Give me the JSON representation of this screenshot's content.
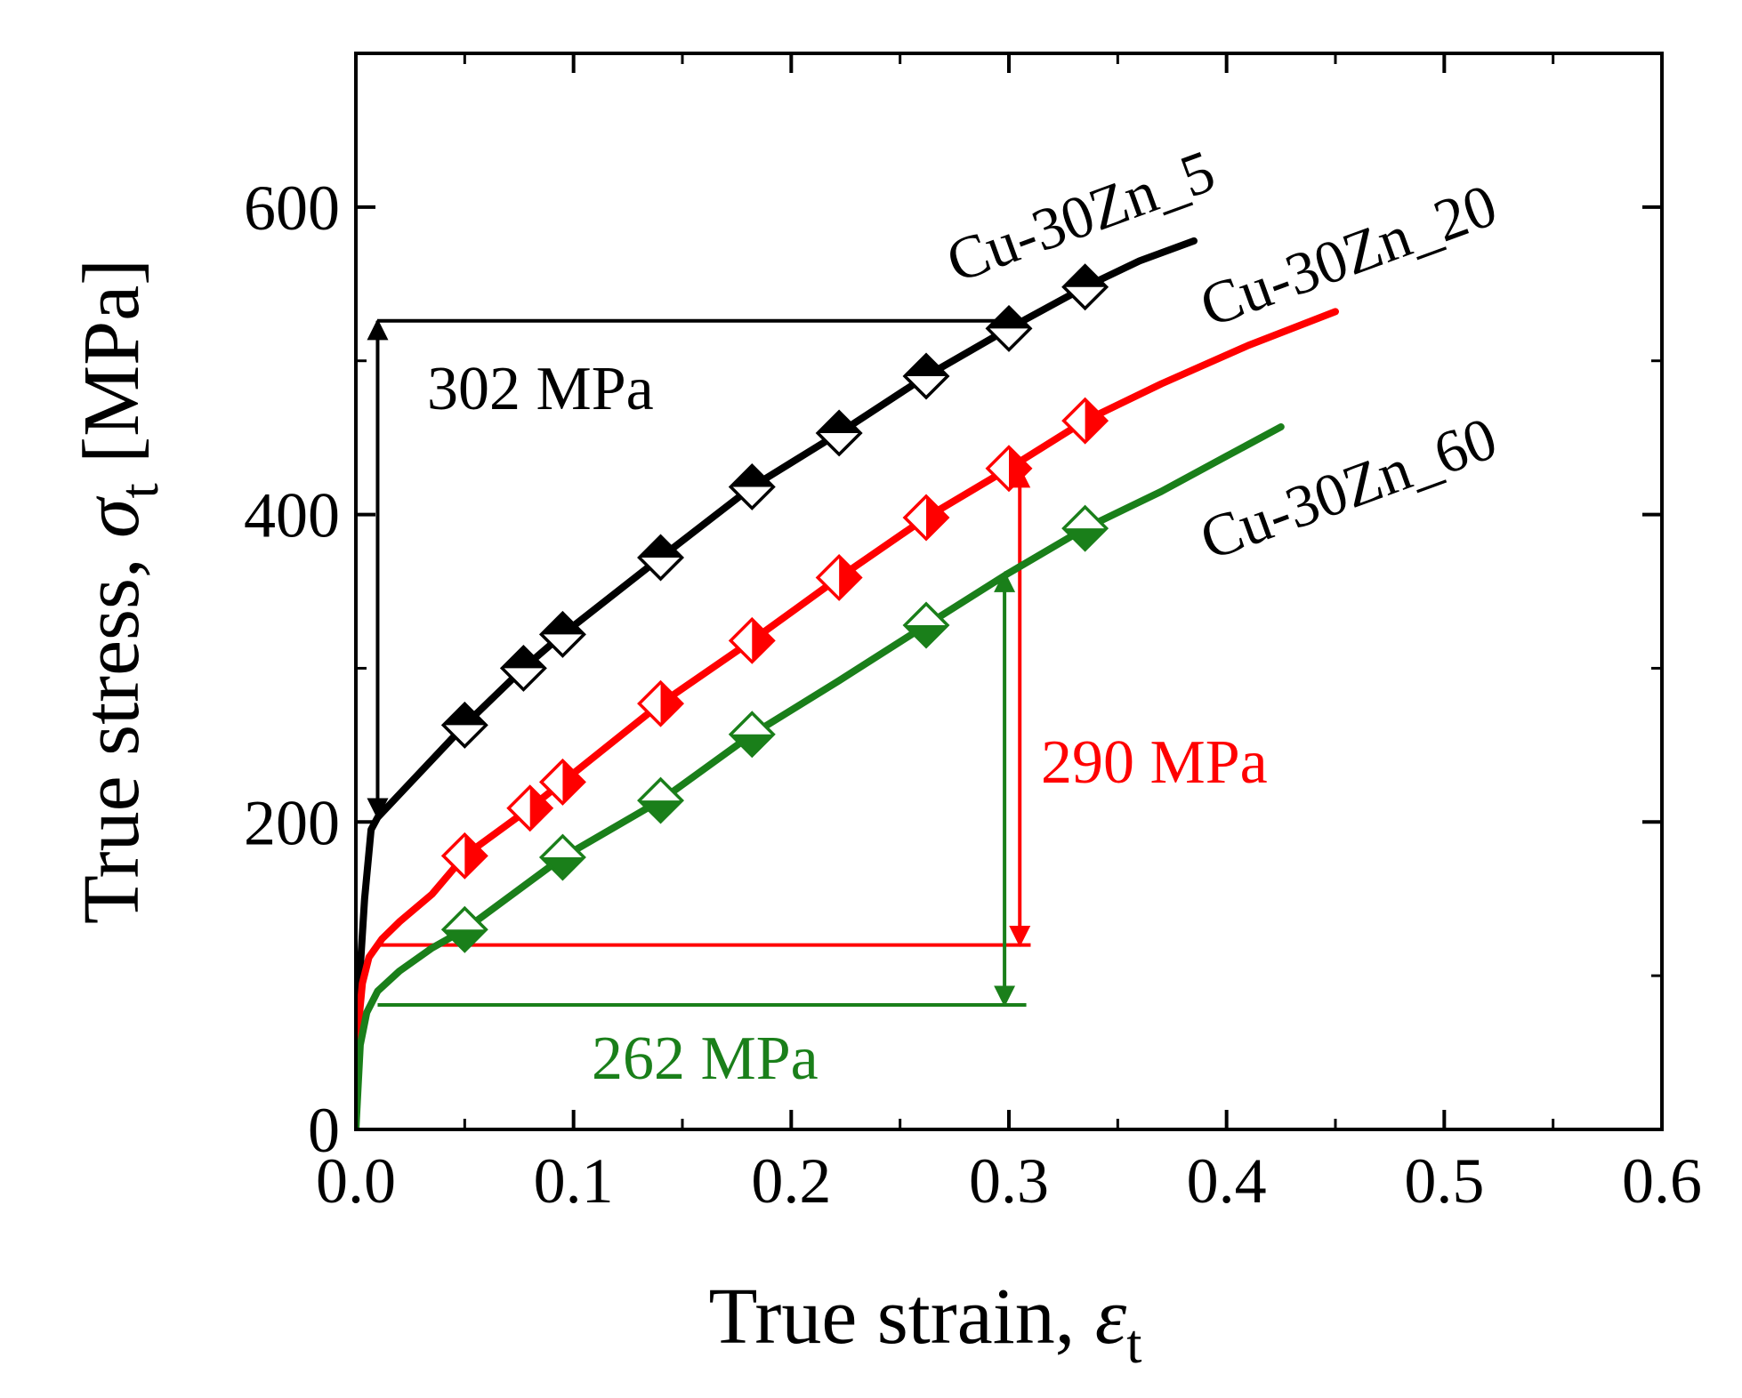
{
  "chart_data": {
    "type": "line",
    "xlabel": {
      "main": "True strain, ",
      "symbol": "ε",
      "sub": "t"
    },
    "ylabel": {
      "main": "True stress, ",
      "symbol": "σ",
      "sub": "t",
      "unit": " [MPa]"
    },
    "xlim": [
      0.0,
      0.6
    ],
    "ylim": [
      0,
      700
    ],
    "xticks": [
      "0.0",
      "0.1",
      "0.2",
      "0.3",
      "0.4",
      "0.5",
      "0.6"
    ],
    "yticks": [
      "0",
      "200",
      "400",
      "600"
    ],
    "grid": false,
    "series": [
      {
        "name": "Cu-30Zn_5",
        "color": "#000000",
        "x": [
          0.0,
          0.004,
          0.007,
          0.01,
          0.05,
          0.077,
          0.095,
          0.14,
          0.182,
          0.222,
          0.262,
          0.3,
          0.335,
          0.36,
          0.385
        ],
        "y": [
          60,
          150,
          195,
          203,
          263,
          300,
          322,
          372,
          418,
          453,
          490,
          521,
          548,
          565,
          578
        ],
        "markers_x": [
          0.05,
          0.077,
          0.095,
          0.14,
          0.182,
          0.222,
          0.262,
          0.3,
          0.335
        ]
      },
      {
        "name": "Cu-30Zn_20",
        "color": "#ff0000",
        "x": [
          0.0,
          0.003,
          0.006,
          0.012,
          0.02,
          0.035,
          0.05,
          0.08,
          0.095,
          0.14,
          0.182,
          0.222,
          0.262,
          0.3,
          0.335,
          0.37,
          0.41,
          0.45
        ],
        "y": [
          50,
          95,
          112,
          124,
          135,
          153,
          178,
          209,
          226,
          277,
          318,
          359,
          398,
          430,
          461,
          485,
          510,
          532
        ],
        "markers_x": [
          0.05,
          0.08,
          0.095,
          0.14,
          0.182,
          0.222,
          0.262,
          0.3,
          0.335
        ]
      },
      {
        "name": "Cu-30Zn_60",
        "color": "#1a7f1a",
        "x": [
          0.0,
          0.002,
          0.005,
          0.01,
          0.02,
          0.035,
          0.05,
          0.095,
          0.14,
          0.182,
          0.222,
          0.262,
          0.3,
          0.335,
          0.37,
          0.4,
          0.425
        ],
        "y": [
          0,
          55,
          76,
          90,
          103,
          118,
          130,
          177,
          214,
          257,
          292,
          328,
          362,
          391,
          415,
          438,
          457
        ],
        "markers_x": [
          0.05,
          0.095,
          0.14,
          0.182,
          0.262,
          0.335
        ]
      }
    ],
    "annotations": [
      {
        "text": "302 MPa",
        "color": "#000000",
        "x": 0.01,
        "y_from": 203,
        "y_to": 526,
        "hline_y": 526,
        "hline_x": [
          0.01,
          0.3
        ]
      },
      {
        "text": "290 MPa",
        "color": "#ff0000",
        "x": 0.305,
        "y_from": 430,
        "y_to": 120,
        "hline_y": 120,
        "hline_x": [
          0.01,
          0.31
        ]
      },
      {
        "text": "262 MPa",
        "color": "#1a7f1a",
        "x": 0.298,
        "y_from": 362,
        "y_to": 81,
        "hline_y": 81,
        "hline_x": [
          0.01,
          0.308
        ]
      }
    ]
  }
}
